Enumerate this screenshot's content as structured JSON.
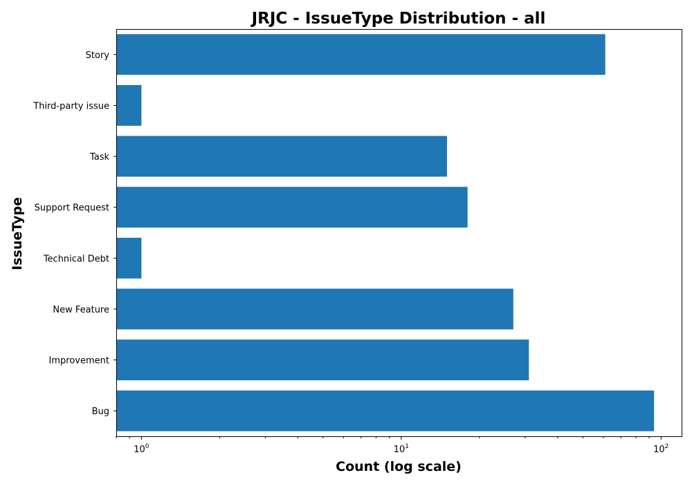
{
  "chart_data": {
    "type": "bar",
    "orientation": "horizontal",
    "title": "JRJC - IssueType Distribution - all",
    "xlabel": "Count (log scale)",
    "ylabel": "IssueType",
    "xscale": "log",
    "xlim": [
      0.8,
      120
    ],
    "grid": false,
    "color": "#1f77b4",
    "categories": [
      "Bug",
      "Improvement",
      "New Feature",
      "Technical Debt",
      "Support Request",
      "Task",
      "Third-party issue",
      "Story"
    ],
    "values": [
      94,
      31,
      27,
      1,
      18,
      15,
      1,
      61
    ],
    "xticks": [
      {
        "value": 1,
        "label": "10^0",
        "base": "10",
        "exp": "0"
      },
      {
        "value": 10,
        "label": "10^1",
        "base": "10",
        "exp": "1"
      },
      {
        "value": 100,
        "label": "10^2",
        "base": "10",
        "exp": "2"
      }
    ]
  }
}
